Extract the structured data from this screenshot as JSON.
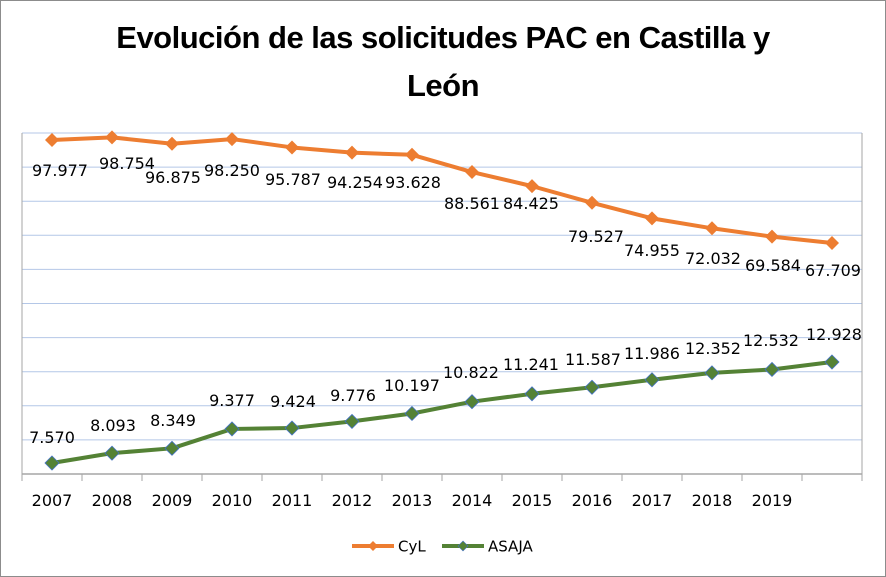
{
  "chart_data": {
    "type": "line",
    "title": "Evolución de las solicitudes PAC en Castilla y León",
    "title_lines": [
      "Evolución de las solicitudes PAC en Castilla y",
      "León"
    ],
    "xlabel": "",
    "ylabel": "",
    "categories": [
      "2007",
      "2008",
      "2009",
      "2010",
      "2011",
      "2012",
      "2013",
      "2014",
      "2015",
      "2016",
      "2017",
      "2018",
      "2019",
      ""
    ],
    "series": [
      {
        "name": "CyL",
        "color": "#ED7D31",
        "values": [
          97977,
          98754,
          96875,
          98250,
          95787,
          94254,
          93628,
          88561,
          84425,
          79527,
          74955,
          72032,
          69584,
          67709
        ],
        "labels": [
          "97.977",
          "98.754",
          "96.875",
          "98.250",
          "95.787",
          "94.254",
          "93.628",
          "88.561",
          "84.425",
          "79.527",
          "74.955",
          "72.032",
          "69.584",
          "67.709"
        ],
        "label_position": "below"
      },
      {
        "name": "ASAJA",
        "color": "#548235",
        "values": [
          7570,
          8093,
          8349,
          9377,
          9424,
          9776,
          10197,
          10822,
          11241,
          11587,
          11986,
          12352,
          12532,
          12928
        ],
        "labels": [
          "7.570",
          "8.093",
          "8.349",
          "9.377",
          "9.424",
          "9.776",
          "10.197",
          "10.822",
          "11.241",
          "11.587",
          "11.986",
          "12.352",
          "12.532",
          "12.928"
        ],
        "label_position": "above"
      }
    ],
    "y_axis_visible": false,
    "grid": true,
    "gridline_color": "#B4C7E7",
    "legend": {
      "position": "bottom",
      "entries": [
        "CyL",
        "ASAJA"
      ]
    }
  }
}
